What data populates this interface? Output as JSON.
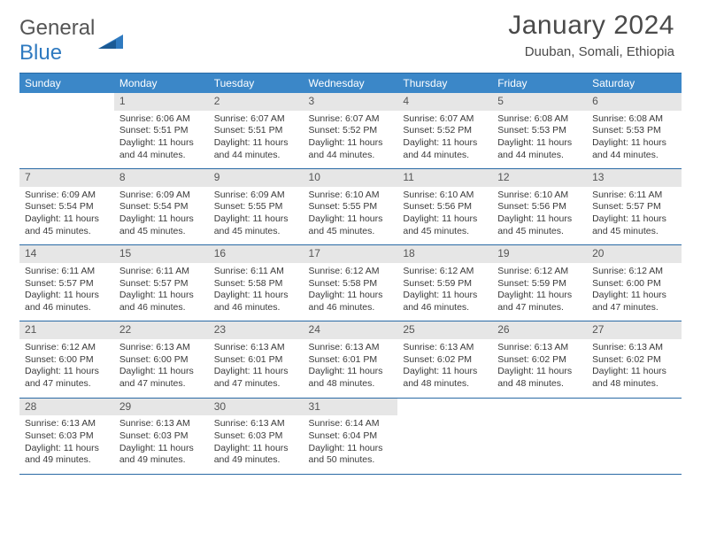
{
  "logo": {
    "text1": "General",
    "text2": "Blue"
  },
  "title": "January 2024",
  "location": "Duuban, Somali, Ethiopia",
  "colors": {
    "header_bg": "#3b87c8",
    "header_text": "#ffffff",
    "rule": "#2a6aa5",
    "daynum_bg": "#e6e6e6",
    "body_text": "#3a3a3a",
    "logo_blue": "#2f7ac0"
  },
  "weekdays": [
    "Sunday",
    "Monday",
    "Tuesday",
    "Wednesday",
    "Thursday",
    "Friday",
    "Saturday"
  ],
  "weeks": [
    {
      "nums": [
        "",
        "1",
        "2",
        "3",
        "4",
        "5",
        "6"
      ],
      "cells": [
        null,
        {
          "sunrise": "6:06 AM",
          "sunset": "5:51 PM",
          "daylight": "11 hours and 44 minutes."
        },
        {
          "sunrise": "6:07 AM",
          "sunset": "5:51 PM",
          "daylight": "11 hours and 44 minutes."
        },
        {
          "sunrise": "6:07 AM",
          "sunset": "5:52 PM",
          "daylight": "11 hours and 44 minutes."
        },
        {
          "sunrise": "6:07 AM",
          "sunset": "5:52 PM",
          "daylight": "11 hours and 44 minutes."
        },
        {
          "sunrise": "6:08 AM",
          "sunset": "5:53 PM",
          "daylight": "11 hours and 44 minutes."
        },
        {
          "sunrise": "6:08 AM",
          "sunset": "5:53 PM",
          "daylight": "11 hours and 44 minutes."
        }
      ]
    },
    {
      "nums": [
        "7",
        "8",
        "9",
        "10",
        "11",
        "12",
        "13"
      ],
      "cells": [
        {
          "sunrise": "6:09 AM",
          "sunset": "5:54 PM",
          "daylight": "11 hours and 45 minutes."
        },
        {
          "sunrise": "6:09 AM",
          "sunset": "5:54 PM",
          "daylight": "11 hours and 45 minutes."
        },
        {
          "sunrise": "6:09 AM",
          "sunset": "5:55 PM",
          "daylight": "11 hours and 45 minutes."
        },
        {
          "sunrise": "6:10 AM",
          "sunset": "5:55 PM",
          "daylight": "11 hours and 45 minutes."
        },
        {
          "sunrise": "6:10 AM",
          "sunset": "5:56 PM",
          "daylight": "11 hours and 45 minutes."
        },
        {
          "sunrise": "6:10 AM",
          "sunset": "5:56 PM",
          "daylight": "11 hours and 45 minutes."
        },
        {
          "sunrise": "6:11 AM",
          "sunset": "5:57 PM",
          "daylight": "11 hours and 45 minutes."
        }
      ]
    },
    {
      "nums": [
        "14",
        "15",
        "16",
        "17",
        "18",
        "19",
        "20"
      ],
      "cells": [
        {
          "sunrise": "6:11 AM",
          "sunset": "5:57 PM",
          "daylight": "11 hours and 46 minutes."
        },
        {
          "sunrise": "6:11 AM",
          "sunset": "5:57 PM",
          "daylight": "11 hours and 46 minutes."
        },
        {
          "sunrise": "6:11 AM",
          "sunset": "5:58 PM",
          "daylight": "11 hours and 46 minutes."
        },
        {
          "sunrise": "6:12 AM",
          "sunset": "5:58 PM",
          "daylight": "11 hours and 46 minutes."
        },
        {
          "sunrise": "6:12 AM",
          "sunset": "5:59 PM",
          "daylight": "11 hours and 46 minutes."
        },
        {
          "sunrise": "6:12 AM",
          "sunset": "5:59 PM",
          "daylight": "11 hours and 47 minutes."
        },
        {
          "sunrise": "6:12 AM",
          "sunset": "6:00 PM",
          "daylight": "11 hours and 47 minutes."
        }
      ]
    },
    {
      "nums": [
        "21",
        "22",
        "23",
        "24",
        "25",
        "26",
        "27"
      ],
      "cells": [
        {
          "sunrise": "6:12 AM",
          "sunset": "6:00 PM",
          "daylight": "11 hours and 47 minutes."
        },
        {
          "sunrise": "6:13 AM",
          "sunset": "6:00 PM",
          "daylight": "11 hours and 47 minutes."
        },
        {
          "sunrise": "6:13 AM",
          "sunset": "6:01 PM",
          "daylight": "11 hours and 47 minutes."
        },
        {
          "sunrise": "6:13 AM",
          "sunset": "6:01 PM",
          "daylight": "11 hours and 48 minutes."
        },
        {
          "sunrise": "6:13 AM",
          "sunset": "6:02 PM",
          "daylight": "11 hours and 48 minutes."
        },
        {
          "sunrise": "6:13 AM",
          "sunset": "6:02 PM",
          "daylight": "11 hours and 48 minutes."
        },
        {
          "sunrise": "6:13 AM",
          "sunset": "6:02 PM",
          "daylight": "11 hours and 48 minutes."
        }
      ]
    },
    {
      "nums": [
        "28",
        "29",
        "30",
        "31",
        "",
        "",
        ""
      ],
      "cells": [
        {
          "sunrise": "6:13 AM",
          "sunset": "6:03 PM",
          "daylight": "11 hours and 49 minutes."
        },
        {
          "sunrise": "6:13 AM",
          "sunset": "6:03 PM",
          "daylight": "11 hours and 49 minutes."
        },
        {
          "sunrise": "6:13 AM",
          "sunset": "6:03 PM",
          "daylight": "11 hours and 49 minutes."
        },
        {
          "sunrise": "6:14 AM",
          "sunset": "6:04 PM",
          "daylight": "11 hours and 50 minutes."
        },
        null,
        null,
        null
      ]
    }
  ],
  "labels": {
    "sunrise": "Sunrise: ",
    "sunset": "Sunset: ",
    "daylight": "Daylight: "
  }
}
